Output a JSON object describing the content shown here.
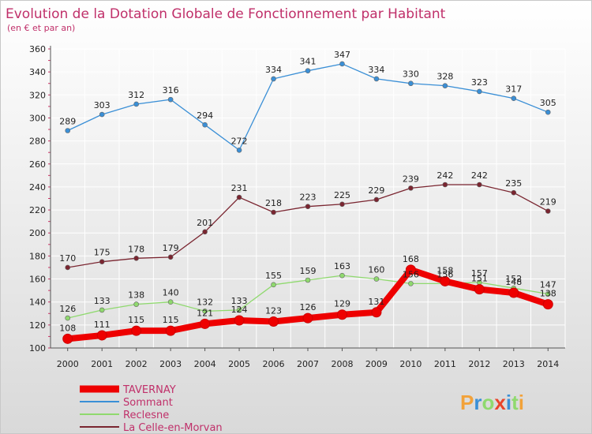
{
  "chart_data": {
    "type": "line",
    "title": "Evolution de la Dotation Globale de Fonctionnement par Habitant",
    "subtitle": "(en € et par an)",
    "xlabel": "",
    "ylabel": "",
    "ylim": [
      100,
      360
    ],
    "yticks": [
      100,
      120,
      140,
      160,
      180,
      200,
      220,
      240,
      260,
      280,
      300,
      320,
      340,
      360
    ],
    "x": [
      "2000",
      "2001",
      "2002",
      "2003",
      "2004",
      "2005",
      "2006",
      "2007",
      "2008",
      "2009",
      "2010",
      "2011",
      "2012",
      "2013",
      "2014"
    ],
    "legend_position": "bottom-left",
    "series": [
      {
        "name": "TAVERNAY",
        "color": "#ee0000",
        "thick": true,
        "values": [
          108,
          111,
          115,
          115,
          121,
          124,
          123,
          126,
          129,
          131,
          168,
          158,
          151,
          148,
          138
        ]
      },
      {
        "name": "Sommant",
        "color": "#3a8fd6",
        "thick": false,
        "values": [
          289,
          303,
          312,
          316,
          294,
          272,
          334,
          341,
          347,
          334,
          330,
          328,
          323,
          317,
          305
        ]
      },
      {
        "name": "Reclesne",
        "color": "#8fd96e",
        "thick": false,
        "values": [
          126,
          133,
          138,
          140,
          132,
          133,
          155,
          159,
          163,
          160,
          156,
          156,
          157,
          152,
          147
        ]
      },
      {
        "name": "La Celle-en-Morvan",
        "color": "#7a2530",
        "thick": false,
        "values": [
          170,
          175,
          178,
          179,
          201,
          231,
          218,
          223,
          225,
          229,
          239,
          242,
          242,
          235,
          219
        ]
      }
    ]
  },
  "watermark": {
    "text": "Proxiti"
  }
}
